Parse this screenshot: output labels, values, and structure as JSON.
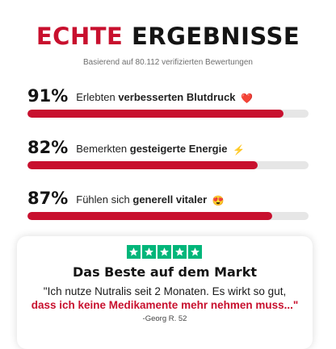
{
  "header": {
    "title_accent": "ECHTE",
    "title_main": "ERGEBNISSE",
    "subtitle": "Basierend auf 80.112 verifizierten Bewertungen"
  },
  "stats": [
    {
      "percent_label": "91%",
      "text_before": "Erlebten",
      "text_bold": "verbesserten Blutdruck",
      "emoji": "❤️",
      "icon": "red-heart-icon",
      "progress": 0.91
    },
    {
      "percent_label": "82%",
      "text_before": "Bemerkten",
      "text_bold": "gesteigerte Energie",
      "emoji": "⚡",
      "icon": "lightning-bolt-icon",
      "progress": 0.82
    },
    {
      "percent_label": "87%",
      "text_before": "Fühlen sich",
      "text_bold": "generell vitaler",
      "emoji": "😍",
      "icon": "heart-eyes-face-icon",
      "progress": 0.87
    }
  ],
  "review": {
    "rating": 5,
    "star_icon": "trustpilot-star-icon",
    "title": "Das Beste auf dem Markt",
    "quote_plain": "\"Ich nutze Nutralis seit 2 Monaten. Es wirkt so gut,",
    "quote_highlight": "dass ich keine Medikamente mehr nehmen muss...\"",
    "author": "-Georg R. 52"
  },
  "colors": {
    "accent_red": "#c8102e",
    "star_green": "#00b67a",
    "track_gray": "#e6e6e6"
  }
}
